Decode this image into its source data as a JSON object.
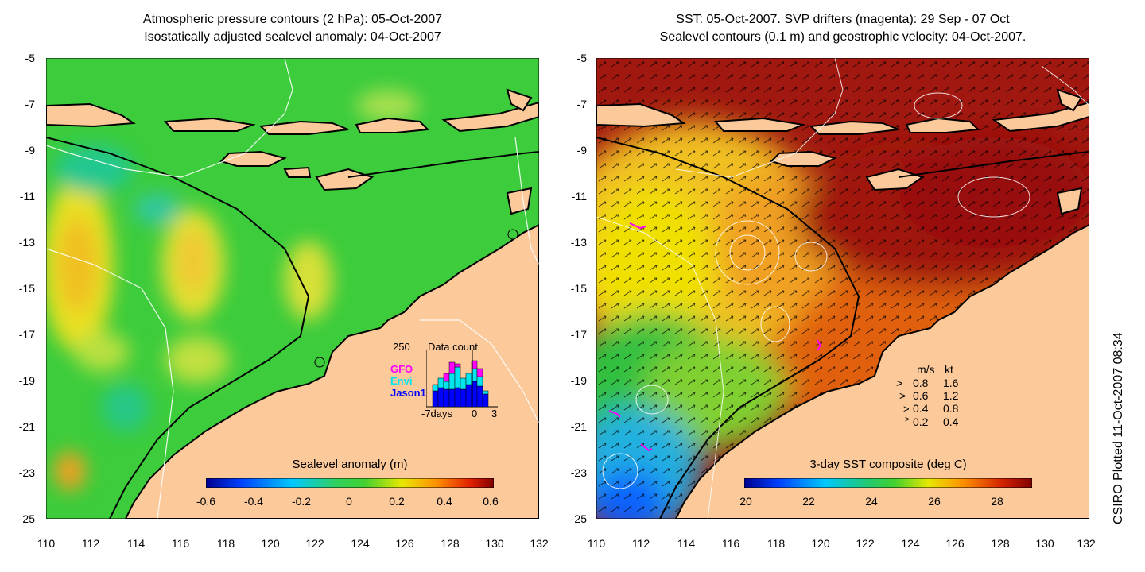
{
  "left_panel": {
    "title_line1": "Atmospheric pressure contours (2 hPa): 05-Oct-2007",
    "title_line2": "Isostatically adjusted sealevel anomaly: 04-Oct-2007",
    "colorbar_title": "Sealevel anomaly (m)",
    "colorbar_ticks": [
      "-0.6",
      "-0.4",
      "-0.2",
      "0",
      "0.2",
      "0.4",
      "0.6"
    ],
    "colors": {
      "ocean": "#39c93a",
      "land": "#fbc99a"
    },
    "inset": {
      "max_label": "250",
      "title": "Data count",
      "legend": [
        {
          "name": "GFO",
          "color": "#ff00ff"
        },
        {
          "name": "Envi",
          "color": "#00e5ee"
        },
        {
          "name": "Jason1",
          "color": "#0000ff"
        }
      ],
      "x_labels": [
        "-7days",
        "0",
        "3"
      ]
    }
  },
  "right_panel": {
    "title_line1": "SST: 05-Oct-2007. SVP drifters (magenta): 29 Sep - 07 Oct",
    "title_line2": "Sealevel contours (0.1 m) and geostrophic velocity: 04-Oct-2007.",
    "colorbar_title": "3-day SST composite (deg C)",
    "colorbar_ticks": [
      "20",
      "22",
      "24",
      "26",
      "28"
    ],
    "colors": {
      "hot": "#a01010",
      "land": "#fbc99a"
    },
    "speed_legend": {
      "header": [
        "m/s",
        "kt"
      ],
      "rows": [
        {
          "ms": "0.8",
          "kt": "1.6"
        },
        {
          "ms": "0.6",
          "kt": "1.2"
        },
        {
          "ms": "0.4",
          "kt": "0.8"
        },
        {
          "ms": "0.2",
          "kt": "0.4"
        }
      ]
    }
  },
  "axes": {
    "y_ticks": [
      "-5",
      "-7",
      "-9",
      "-11",
      "-13",
      "-15",
      "-17",
      "-19",
      "-21",
      "-23",
      "-25"
    ],
    "x_ticks": [
      "110",
      "112",
      "114",
      "116",
      "118",
      "120",
      "122",
      "124",
      "126",
      "128",
      "130",
      "132"
    ]
  },
  "side_label": "CSIRO Plotted 11-Oct-2007 08:34"
}
